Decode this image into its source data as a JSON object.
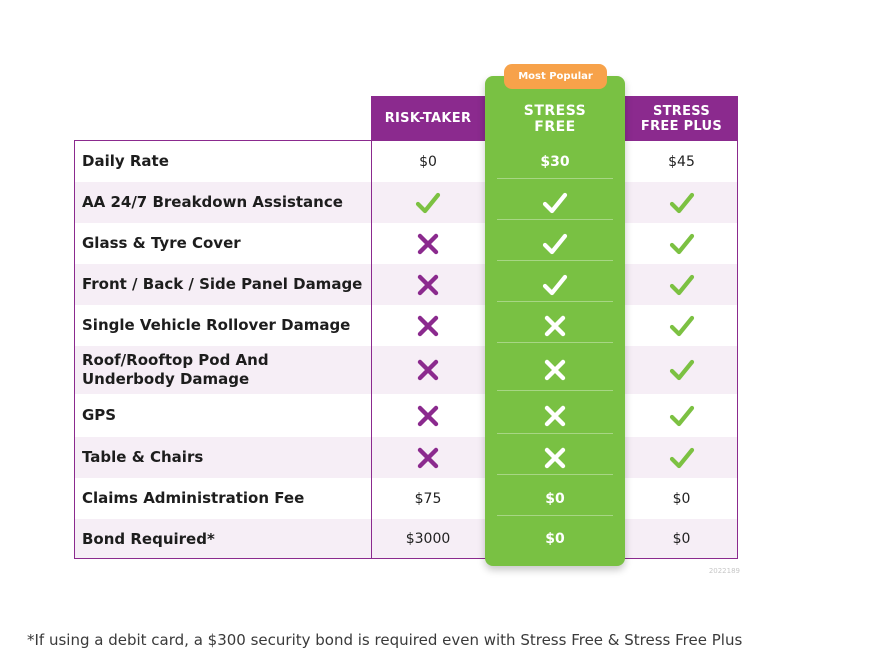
{
  "badge": "Most Popular",
  "columns": [
    {
      "key": "risk",
      "label": "RISK-TAKER"
    },
    {
      "key": "stress",
      "label_line1": "STRESS",
      "label_line2": "FREE"
    },
    {
      "key": "plus",
      "label_line1": "STRESS",
      "label_line2": "FREE PLUS"
    }
  ],
  "rows": [
    {
      "label": "Daily Rate",
      "risk": "$0",
      "stress": "$30",
      "plus": "$45"
    },
    {
      "label": "AA 24/7 Breakdown Assistance",
      "risk": "check",
      "stress": "check",
      "plus": "check"
    },
    {
      "label": "Glass & Tyre Cover",
      "risk": "cross",
      "stress": "check",
      "plus": "check"
    },
    {
      "label": "Front / Back / Side Panel Damage",
      "risk": "cross",
      "stress": "check",
      "plus": "check"
    },
    {
      "label": "Single Vehicle Rollover Damage",
      "risk": "cross",
      "stress": "cross",
      "plus": "check"
    },
    {
      "label": "Roof/Rooftop Pod And Underbody Damage",
      "risk": "cross",
      "stress": "cross",
      "plus": "check"
    },
    {
      "label": "GPS",
      "risk": "cross",
      "stress": "cross",
      "plus": "check"
    },
    {
      "label": "Table & Chairs",
      "risk": "cross",
      "stress": "cross",
      "plus": "check"
    },
    {
      "label": "Claims Administration Fee",
      "risk": "$75",
      "stress": "$0",
      "plus": "$0"
    },
    {
      "label": "Bond Required*",
      "risk": "$3000",
      "stress": "$0",
      "plus": "$0"
    }
  ],
  "colors": {
    "purple": "#8b2a8e",
    "green": "#79c143",
    "check_green": "#7cc142",
    "orange": "#f7a24a"
  },
  "version_code": "2022189",
  "footnote": "*If using a debit card, a $300 security bond is required even with Stress Free & Stress Free Plus"
}
